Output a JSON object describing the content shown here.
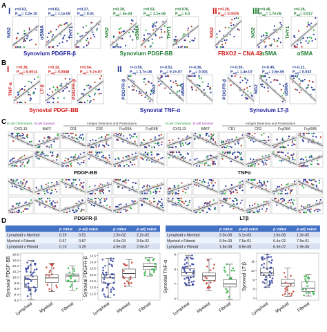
{
  "panel_letters": [
    "A",
    "B",
    "C",
    "D"
  ],
  "section_a": {
    "groups": [
      {
        "numeral": "I",
        "numeral_color": "#1f3a93",
        "xlabel": "Synovium PDGFR-β",
        "xlabel_color": "#1f1f9e",
        "plots": [
          {
            "ylabel": "NG2",
            "r": "r=0.63,",
            "p": "P",
            "p_sub": "adj",
            "p_val": "= 3.2e-10",
            "stat_color": "#1f3a93",
            "rlabel_color": "#1f3a93"
          },
          {
            "ylabel": "αSMA",
            "r": "r=0.62,",
            "p": "P",
            "p_sub": "adj",
            "p_val": "= 1.1e-09",
            "stat_color": "#1f3a93",
            "rlabel_color": "#1f3a93"
          },
          {
            "ylabel": "THY1",
            "r": "r=0.27,",
            "p": "P",
            "p_sub": "adj",
            "p_val": "= 0.01",
            "stat_color": "#1f3a93",
            "rlabel_color": "#1f3a93"
          }
        ]
      },
      {
        "numeral": "",
        "numeral_color": "#1f3a93",
        "xlabel": "Synovium PDGF-BB",
        "xlabel_color": "#1d7a2e",
        "plots": [
          {
            "ylabel": "NG2",
            "r": "r=0.39,",
            "p": "P",
            "p_sub": "adj",
            "p_val": "= 6e-04",
            "stat_color": "#1d7a2e",
            "rlabel_color": "#1d7a2e"
          },
          {
            "ylabel": "αSMA",
            "r": "r=0.53,",
            "p": "P",
            "p_sub": "adj",
            "p_val": "= 1.1e-06",
            "stat_color": "#1d7a2e",
            "rlabel_color": "#1d7a2e"
          },
          {
            "ylabel": "THY1",
            "r": "r=0.076,",
            "p": "P",
            "p_sub": "adj",
            "p_val": "= 0.3",
            "stat_color": "#1d7a2e",
            "rlabel_color": "#1d7a2e"
          }
        ]
      },
      {
        "numeral": "II",
        "numeral_color": "#d01919",
        "xlabel": "FBXO2 – CNA.42",
        "xlabel_color": "#d01919",
        "plots": [
          {
            "ylabel": "NG2",
            "r": "r=0.28,",
            "p": "P",
            "p_sub": "adj",
            "p_val": "= 0.0076",
            "stat_color": "#d01919",
            "rlabel_color": "#d01919"
          }
        ]
      },
      {
        "numeral": "III",
        "numeral_color": "#1d7a2e",
        "xlabel": "αSMA",
        "xlabel_color": "#1d7a2e",
        "plots": [
          {
            "ylabel": "NG2",
            "r": "r=0.46,",
            "p": "P",
            "p_sub": "adj",
            "p_val": "= 1.7e-05",
            "stat_color": "#1d7a2e",
            "rlabel_color": "#1d7a2e"
          }
        ]
      },
      {
        "numeral": "",
        "numeral_color": "#1d7a2e",
        "xlabel": "αSMA",
        "xlabel_color": "#1d7a2e",
        "plots": [
          {
            "ylabel": "THY1",
            "r": "r=0.26,",
            "p": "P",
            "p_sub": "adj",
            "p_val": "= 0.017",
            "stat_color": "#1d7a2e",
            "rlabel_color": "#1d7a2e"
          }
        ]
      }
    ]
  },
  "section_b": {
    "groups": [
      {
        "numeral": "I",
        "numeral_color": "#d01919",
        "xlabel": "Synovial PDGF-BB",
        "xlabel_color": "#d01919",
        "plots": [
          {
            "ylabel": "TNF-α",
            "r": "r=0.36,",
            "p": "P",
            "p_sub": "adj",
            "p_val": "= 0.0014",
            "stat_color": "#d01919"
          },
          {
            "ylabel": "LT-β",
            "r": "r=0.32,",
            "p": "P",
            "p_sub": "adj",
            "p_val": "= 0.0048",
            "stat_color": "#d01919"
          },
          {
            "ylabel": "PDGFR-β",
            "r": "r=0.54,",
            "p": "P",
            "p_sub": "adj",
            "p_val": "= 5.7e-07",
            "stat_color": "#d01919"
          }
        ]
      },
      {
        "numeral": "II",
        "numeral_color": "#1f3a93",
        "xlabel": "Synovial TNF-α",
        "xlabel_color": "#1f1f9e",
        "plots": [
          {
            "ylabel": "PDGFR-β",
            "r": "r=-0.59,",
            "p": "P",
            "p_sub": "adj",
            "p_val": "= 1.7e-08",
            "stat_color": "#1f3a93"
          },
          {
            "ylabel": "NG2",
            "r": "r=-0.51,",
            "p": "P",
            "p_sub": "adj",
            "p_val": "= 9.7e-07",
            "stat_color": "#1f3a93"
          },
          {
            "ylabel": "αSMA",
            "r": "r=-0.36,",
            "p": "P",
            "p_sub": "adj",
            "p_val": "= 0.001",
            "stat_color": "#1f3a93"
          }
        ]
      },
      {
        "numeral": "",
        "numeral_color": "#1f3a93",
        "xlabel": "Synovium LT-β",
        "xlabel_color": "#1f1f9e",
        "plots": [
          {
            "ylabel": "PDGFR-β",
            "r": "r=-0.55,",
            "p": "P",
            "p_sub": "adj",
            "p_val": "= 1.4e-07",
            "stat_color": "#1f3a93"
          },
          {
            "ylabel": "NG2",
            "r": "r=-0.45,",
            "p": "P",
            "p_sub": "adj",
            "p_val": "= 2.6e-05",
            "stat_color": "#1f3a93"
          },
          {
            "ylabel": "αSMA",
            "r": "r=-0.21,",
            "p": "P",
            "p_sub": "adj",
            "p_val": "= 0.033",
            "stat_color": "#1f3a93"
          }
        ]
      }
    ]
  },
  "section_c": {
    "header_left": {
      "chemotaxis": "B cell Chemotaxis",
      "survival": "B cell Survival",
      "antigen": "Antigen Retention and Presentation"
    },
    "header_right": {
      "chemotaxis": "B cell Chemotaxis",
      "survival": "B cell Survival",
      "antigen": "Antigen Retention and Presentation"
    },
    "genes": [
      "CXCL13",
      "BAFF",
      "CR1",
      "CR2",
      "FcγRIIA",
      "FcγRIIB"
    ],
    "row_labels": {
      "r1_left": "PDGF-BB",
      "r1_right": "TNFα",
      "r2_left": "PDGFR-β",
      "r2_right": "LTβ"
    }
  },
  "section_d": {
    "tables": [
      {
        "headers": [
          "",
          "p value",
          "p adj value"
        ],
        "rows": [
          [
            "Lymphoid v Myeloid",
            "0.29",
            "0.51"
          ],
          [
            "Myeloid v Fibroid",
            "0.67",
            "0.87"
          ],
          [
            "Lymphoid v Fibroid",
            "0.15",
            "0.25"
          ]
        ]
      },
      {
        "headers": [
          "p value",
          "p adj value"
        ],
        "rows": [
          [
            "1.5e-02",
            "2.2e-02"
          ],
          [
            "4.9e-03",
            "3.6e-02"
          ],
          [
            "4.9e-08",
            "2.0e-07"
          ]
        ]
      },
      {
        "headers": [
          "",
          "p value",
          "p adj value"
        ],
        "rows": [
          [
            "Lymphoid v Myeloid",
            "3.3e-03",
            "6.1e-03"
          ],
          [
            "Myeloid v Fibroid",
            "9.9e-03",
            "7.5e-01"
          ],
          [
            "Lymphoid v Fibroid",
            "1.8e-08",
            "8.6e-08"
          ]
        ]
      },
      {
        "headers": [
          "p value",
          "p adj value"
        ],
        "rows": [
          [
            "1.6e-06",
            "1.3e-05"
          ],
          [
            "6.4e-02",
            "7.5e-01"
          ],
          [
            "6.3e-07",
            "1.9e-06"
          ]
        ]
      }
    ]
  },
  "chart_data": [
    {
      "type": "box",
      "ylabel": "Synovial PDGF-BB",
      "categories": [
        "Lymphoid",
        "Myeloid",
        "Fibroid"
      ],
      "ylim": [
        9.2,
        10.85
      ],
      "yticks": [
        "9.2",
        "9.4",
        "9.6",
        "9.8",
        "10.0",
        "10.2",
        "10.4",
        "10.6",
        "10.8"
      ],
      "box": [
        {
          "min": 9.22,
          "q1": 9.65,
          "median": 9.92,
          "q3": 10.05,
          "max": 10.6,
          "color": "#2b3a9e"
        },
        {
          "min": 9.5,
          "q1": 9.82,
          "median": 9.98,
          "q3": 10.1,
          "max": 10.5,
          "color": "#c0392b"
        },
        {
          "min": 9.55,
          "q1": 9.85,
          "median": 10.05,
          "q3": 10.12,
          "max": 10.4,
          "color": "#27ae3c"
        }
      ]
    },
    {
      "type": "box",
      "ylabel": "Synovial PDGFR-β",
      "categories": [
        "Lymphoid",
        "Myeloid",
        "Fibroid"
      ],
      "ylim": [
        11.0,
        14.7
      ],
      "yticks": [
        "11.5",
        "12.0",
        "12.5",
        "13.0",
        "13.5",
        "14.0",
        "14.5"
      ],
      "box": [
        {
          "min": 11.2,
          "q1": 12.35,
          "median": 12.75,
          "q3": 13.05,
          "max": 14.3,
          "color": "#2b3a9e"
        },
        {
          "min": 12.1,
          "q1": 12.75,
          "median": 13.1,
          "q3": 13.45,
          "max": 14.2,
          "color": "#c0392b"
        },
        {
          "min": 12.9,
          "q1": 13.4,
          "median": 13.65,
          "q3": 13.9,
          "max": 14.35,
          "color": "#27ae3c"
        }
      ]
    },
    {
      "type": "box",
      "ylabel": "Synovial TNF-α",
      "categories": [
        "Lymphoid",
        "Myeloid",
        "Fibroid"
      ],
      "ylim": [
        5.9,
        9.1
      ],
      "yticks": [
        "6",
        "7",
        "8",
        "9"
      ],
      "box": [
        {
          "min": 6.9,
          "q1": 7.55,
          "median": 7.8,
          "q3": 8.05,
          "max": 8.95,
          "color": "#2b3a9e"
        },
        {
          "min": 6.55,
          "q1": 7.25,
          "median": 7.55,
          "q3": 7.75,
          "max": 8.7,
          "color": "#c0392b"
        },
        {
          "min": 5.95,
          "q1": 6.8,
          "median": 7.0,
          "q3": 7.3,
          "max": 8.35,
          "color": "#27ae3c"
        }
      ]
    },
    {
      "type": "box",
      "ylabel": "Synovial LT-β",
      "categories": [
        "Lymphoid",
        "Myeloid",
        "Fibroid"
      ],
      "ylim": [
        6.8,
        11.9
      ],
      "yticks": [
        "7",
        "8",
        "9",
        "10",
        "11"
      ],
      "box": [
        {
          "min": 8.2,
          "q1": 9.45,
          "median": 9.75,
          "q3": 10.3,
          "max": 11.8,
          "color": "#2b3a9e"
        },
        {
          "min": 7.2,
          "q1": 8.3,
          "median": 8.65,
          "q3": 9.05,
          "max": 10.3,
          "color": "#c0392b"
        },
        {
          "min": 7.25,
          "q1": 7.75,
          "median": 8.1,
          "q3": 8.8,
          "max": 9.6,
          "color": "#27ae3c"
        }
      ]
    }
  ]
}
